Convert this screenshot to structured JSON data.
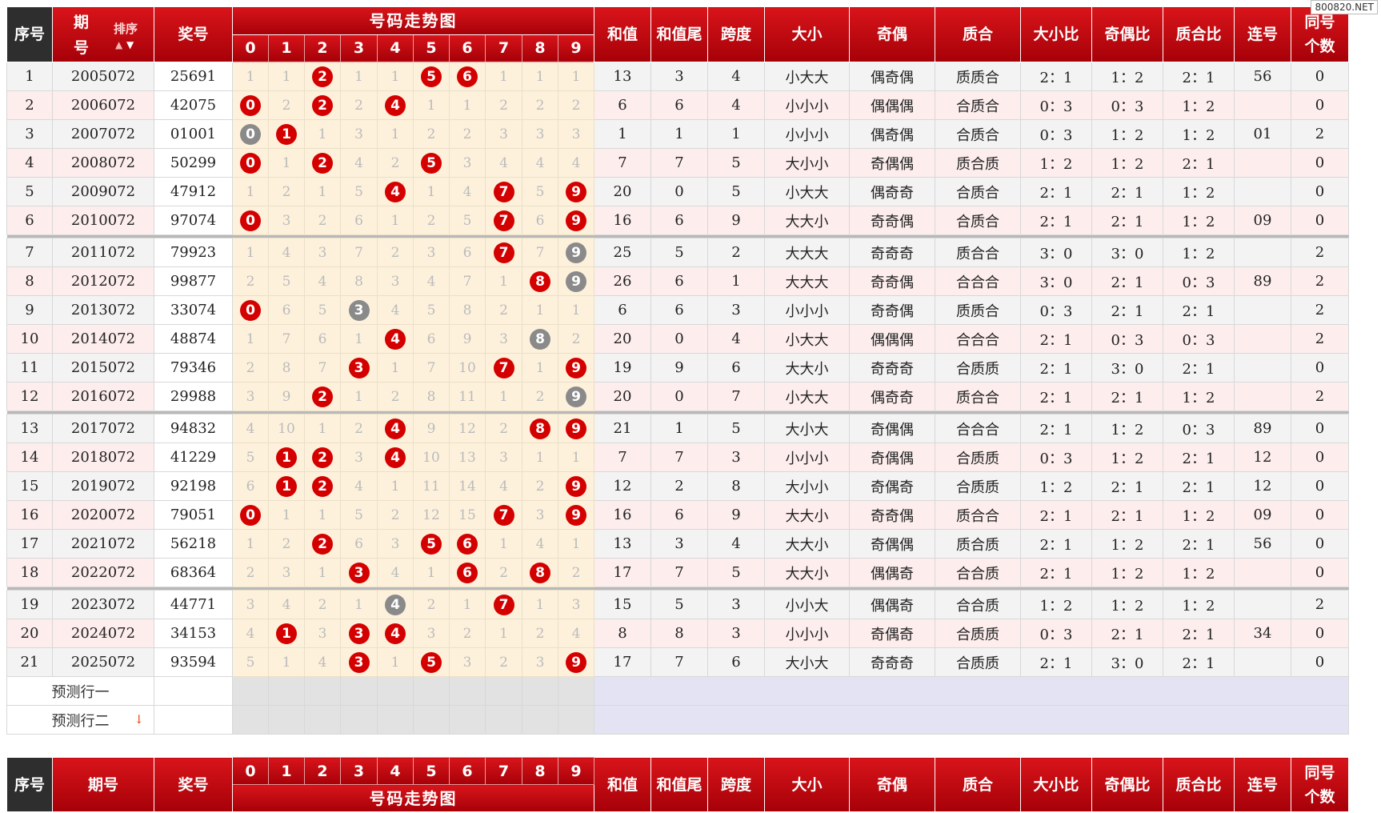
{
  "watermark": "800820.NET",
  "header": {
    "seq": "序号",
    "period_top": "期",
    "period_bottom": "号",
    "sort_label": "排序",
    "prize": "奖号",
    "trend_title": "号码走势图",
    "digits": [
      "0",
      "1",
      "2",
      "3",
      "4",
      "5",
      "6",
      "7",
      "8",
      "9"
    ],
    "sum": "和值",
    "sum_tail": "和值尾",
    "span": "跨度",
    "size": "大小",
    "parity": "奇偶",
    "prime": "质合",
    "size_ratio": "大小比",
    "parity_ratio": "奇偶比",
    "prime_ratio": "质合比",
    "consecutive": "连号",
    "same_top": "同号",
    "same_bottom": "个数"
  },
  "footer": {
    "seq": "序号",
    "period": "期号",
    "prize": "奖号",
    "trend_title": "号码走势图",
    "same_top": "同号",
    "same_bottom": "个数"
  },
  "predict": [
    "预测行一",
    "预测行二"
  ],
  "rows": [
    {
      "seq": "1",
      "period": "2005072",
      "prize": "25691",
      "trend": [
        "1",
        "1",
        "2",
        "1",
        "1",
        "5",
        "6",
        "1",
        "1",
        "1"
      ],
      "hit": [
        "",
        "",
        "r",
        "",
        "",
        "r",
        "r",
        "",
        "",
        ""
      ],
      "sum": "13",
      "tail": "3",
      "span": "4",
      "size": "小大大",
      "parity": "偶奇偶",
      "prime": "质质合",
      "sr": "2：1",
      "pr": "1：2",
      "qr": "2：1",
      "cons": "56",
      "same": "0"
    },
    {
      "seq": "2",
      "period": "2006072",
      "prize": "42075",
      "trend": [
        "0",
        "2",
        "2",
        "2",
        "4",
        "1",
        "1",
        "2",
        "2",
        "2"
      ],
      "hit": [
        "r",
        "",
        "r",
        "",
        "r",
        "",
        "",
        "",
        "",
        ""
      ],
      "sum": "6",
      "tail": "6",
      "span": "4",
      "size": "小小小",
      "parity": "偶偶偶",
      "prime": "合质合",
      "sr": "0：3",
      "pr": "0：3",
      "qr": "1：2",
      "cons": "",
      "same": "0"
    },
    {
      "seq": "3",
      "period": "2007072",
      "prize": "01001",
      "trend": [
        "0",
        "1",
        "1",
        "3",
        "1",
        "2",
        "2",
        "3",
        "3",
        "3"
      ],
      "hit": [
        "g",
        "r",
        "",
        "",
        "",
        "",
        "",
        "",
        "",
        ""
      ],
      "sum": "1",
      "tail": "1",
      "span": "1",
      "size": "小小小",
      "parity": "偶奇偶",
      "prime": "合质合",
      "sr": "0：3",
      "pr": "1：2",
      "qr": "1：2",
      "cons": "01",
      "same": "2"
    },
    {
      "seq": "4",
      "period": "2008072",
      "prize": "50299",
      "trend": [
        "0",
        "1",
        "2",
        "4",
        "2",
        "5",
        "3",
        "4",
        "4",
        "4"
      ],
      "hit": [
        "r",
        "",
        "r",
        "",
        "",
        "r",
        "",
        "",
        "",
        ""
      ],
      "sum": "7",
      "tail": "7",
      "span": "5",
      "size": "大小小",
      "parity": "奇偶偶",
      "prime": "质合质",
      "sr": "1：2",
      "pr": "1：2",
      "qr": "2：1",
      "cons": "",
      "same": "0"
    },
    {
      "seq": "5",
      "period": "2009072",
      "prize": "47912",
      "trend": [
        "1",
        "2",
        "1",
        "5",
        "4",
        "1",
        "4",
        "7",
        "5",
        "9"
      ],
      "hit": [
        "",
        "",
        "",
        "",
        "r",
        "",
        "",
        "r",
        "",
        "r"
      ],
      "sum": "20",
      "tail": "0",
      "span": "5",
      "size": "小大大",
      "parity": "偶奇奇",
      "prime": "合质合",
      "sr": "2：1",
      "pr": "2：1",
      "qr": "1：2",
      "cons": "",
      "same": "0"
    },
    {
      "seq": "6",
      "period": "2010072",
      "prize": "97074",
      "trend": [
        "0",
        "3",
        "2",
        "6",
        "1",
        "2",
        "5",
        "7",
        "6",
        "9"
      ],
      "hit": [
        "r",
        "",
        "",
        "",
        "",
        "",
        "",
        "r",
        "",
        "r"
      ],
      "sum": "16",
      "tail": "6",
      "span": "9",
      "size": "大大小",
      "parity": "奇奇偶",
      "prime": "合质合",
      "sr": "2：1",
      "pr": "2：1",
      "qr": "1：2",
      "cons": "09",
      "same": "0"
    },
    {
      "seq": "7",
      "period": "2011072",
      "prize": "79923",
      "trend": [
        "1",
        "4",
        "3",
        "7",
        "2",
        "3",
        "6",
        "7",
        "7",
        "9"
      ],
      "hit": [
        "",
        "",
        "",
        "",
        "",
        "",
        "",
        "r",
        "",
        "g"
      ],
      "sum": "25",
      "tail": "5",
      "span": "2",
      "size": "大大大",
      "parity": "奇奇奇",
      "prime": "质合合",
      "sr": "3：0",
      "pr": "3：0",
      "qr": "1：2",
      "cons": "",
      "same": "2"
    },
    {
      "seq": "8",
      "period": "2012072",
      "prize": "99877",
      "trend": [
        "2",
        "5",
        "4",
        "8",
        "3",
        "4",
        "7",
        "1",
        "8",
        "9"
      ],
      "hit": [
        "",
        "",
        "",
        "",
        "",
        "",
        "",
        "",
        "r",
        "g"
      ],
      "sum": "26",
      "tail": "6",
      "span": "1",
      "size": "大大大",
      "parity": "奇奇偶",
      "prime": "合合合",
      "sr": "3：0",
      "pr": "2：1",
      "qr": "0：3",
      "cons": "89",
      "same": "2"
    },
    {
      "seq": "9",
      "period": "2013072",
      "prize": "33074",
      "trend": [
        "0",
        "6",
        "5",
        "3",
        "4",
        "5",
        "8",
        "2",
        "1",
        "1"
      ],
      "hit": [
        "r",
        "",
        "",
        "g",
        "",
        "",
        "",
        "",
        "",
        ""
      ],
      "sum": "6",
      "tail": "6",
      "span": "3",
      "size": "小小小",
      "parity": "奇奇偶",
      "prime": "质质合",
      "sr": "0：3",
      "pr": "2：1",
      "qr": "2：1",
      "cons": "",
      "same": "2"
    },
    {
      "seq": "10",
      "period": "2014072",
      "prize": "48874",
      "trend": [
        "1",
        "7",
        "6",
        "1",
        "4",
        "6",
        "9",
        "3",
        "8",
        "2"
      ],
      "hit": [
        "",
        "",
        "",
        "",
        "r",
        "",
        "",
        "",
        "g",
        ""
      ],
      "sum": "20",
      "tail": "0",
      "span": "4",
      "size": "小大大",
      "parity": "偶偶偶",
      "prime": "合合合",
      "sr": "2：1",
      "pr": "0：3",
      "qr": "0：3",
      "cons": "",
      "same": "2"
    },
    {
      "seq": "11",
      "period": "2015072",
      "prize": "79346",
      "trend": [
        "2",
        "8",
        "7",
        "3",
        "1",
        "7",
        "10",
        "7",
        "1",
        "9"
      ],
      "hit": [
        "",
        "",
        "",
        "r",
        "",
        "",
        "",
        "r",
        "",
        "r"
      ],
      "sum": "19",
      "tail": "9",
      "span": "6",
      "size": "大大小",
      "parity": "奇奇奇",
      "prime": "合质质",
      "sr": "2：1",
      "pr": "3：0",
      "qr": "2：1",
      "cons": "",
      "same": "0"
    },
    {
      "seq": "12",
      "period": "2016072",
      "prize": "29988",
      "trend": [
        "3",
        "9",
        "2",
        "1",
        "2",
        "8",
        "11",
        "1",
        "2",
        "9"
      ],
      "hit": [
        "",
        "",
        "r",
        "",
        "",
        "",
        "",
        "",
        "",
        "g"
      ],
      "sum": "20",
      "tail": "0",
      "span": "7",
      "size": "小大大",
      "parity": "偶奇奇",
      "prime": "质合合",
      "sr": "2：1",
      "pr": "2：1",
      "qr": "1：2",
      "cons": "",
      "same": "2"
    },
    {
      "seq": "13",
      "period": "2017072",
      "prize": "94832",
      "trend": [
        "4",
        "10",
        "1",
        "2",
        "4",
        "9",
        "12",
        "2",
        "8",
        "9"
      ],
      "hit": [
        "",
        "",
        "",
        "",
        "r",
        "",
        "",
        "",
        "r",
        "r"
      ],
      "sum": "21",
      "tail": "1",
      "span": "5",
      "size": "大小大",
      "parity": "奇偶偶",
      "prime": "合合合",
      "sr": "2：1",
      "pr": "1：2",
      "qr": "0：3",
      "cons": "89",
      "same": "0"
    },
    {
      "seq": "14",
      "period": "2018072",
      "prize": "41229",
      "trend": [
        "5",
        "1",
        "2",
        "3",
        "4",
        "10",
        "13",
        "3",
        "1",
        "1"
      ],
      "hit": [
        "",
        "r",
        "r",
        "",
        "r",
        "",
        "",
        "",
        "",
        ""
      ],
      "sum": "7",
      "tail": "7",
      "span": "3",
      "size": "小小小",
      "parity": "奇偶偶",
      "prime": "合质质",
      "sr": "0：3",
      "pr": "1：2",
      "qr": "2：1",
      "cons": "12",
      "same": "0"
    },
    {
      "seq": "15",
      "period": "2019072",
      "prize": "92198",
      "trend": [
        "6",
        "1",
        "2",
        "4",
        "1",
        "11",
        "14",
        "4",
        "2",
        "9"
      ],
      "hit": [
        "",
        "r",
        "r",
        "",
        "",
        "",
        "",
        "",
        "",
        "r"
      ],
      "sum": "12",
      "tail": "2",
      "span": "8",
      "size": "大小小",
      "parity": "奇偶奇",
      "prime": "合质质",
      "sr": "1：2",
      "pr": "2：1",
      "qr": "2：1",
      "cons": "12",
      "same": "0"
    },
    {
      "seq": "16",
      "period": "2020072",
      "prize": "79051",
      "trend": [
        "0",
        "1",
        "1",
        "5",
        "2",
        "12",
        "15",
        "7",
        "3",
        "9"
      ],
      "hit": [
        "r",
        "",
        "",
        "",
        "",
        "",
        "",
        "r",
        "",
        "r"
      ],
      "sum": "16",
      "tail": "6",
      "span": "9",
      "size": "大大小",
      "parity": "奇奇偶",
      "prime": "质合合",
      "sr": "2：1",
      "pr": "2：1",
      "qr": "1：2",
      "cons": "09",
      "same": "0"
    },
    {
      "seq": "17",
      "period": "2021072",
      "prize": "56218",
      "trend": [
        "1",
        "2",
        "2",
        "6",
        "3",
        "5",
        "6",
        "1",
        "4",
        "1"
      ],
      "hit": [
        "",
        "",
        "r",
        "",
        "",
        "r",
        "r",
        "",
        "",
        ""
      ],
      "sum": "13",
      "tail": "3",
      "span": "4",
      "size": "大大小",
      "parity": "奇偶偶",
      "prime": "质合质",
      "sr": "2：1",
      "pr": "1：2",
      "qr": "2：1",
      "cons": "56",
      "same": "0"
    },
    {
      "seq": "18",
      "period": "2022072",
      "prize": "68364",
      "trend": [
        "2",
        "3",
        "1",
        "3",
        "4",
        "1",
        "6",
        "2",
        "8",
        "2"
      ],
      "hit": [
        "",
        "",
        "",
        "r",
        "",
        "",
        "r",
        "",
        "r",
        ""
      ],
      "sum": "17",
      "tail": "7",
      "span": "5",
      "size": "大大小",
      "parity": "偶偶奇",
      "prime": "合合质",
      "sr": "2：1",
      "pr": "1：2",
      "qr": "1：2",
      "cons": "",
      "same": "0"
    },
    {
      "seq": "19",
      "period": "2023072",
      "prize": "44771",
      "trend": [
        "3",
        "4",
        "2",
        "1",
        "4",
        "2",
        "1",
        "7",
        "1",
        "3"
      ],
      "hit": [
        "",
        "",
        "",
        "",
        "g",
        "",
        "",
        "r",
        "",
        ""
      ],
      "sum": "15",
      "tail": "5",
      "span": "3",
      "size": "小小大",
      "parity": "偶偶奇",
      "prime": "合合质",
      "sr": "1：2",
      "pr": "1：2",
      "qr": "1：2",
      "cons": "",
      "same": "2"
    },
    {
      "seq": "20",
      "period": "2024072",
      "prize": "34153",
      "trend": [
        "4",
        "1",
        "3",
        "3",
        "4",
        "3",
        "2",
        "1",
        "2",
        "4"
      ],
      "hit": [
        "",
        "r",
        "",
        "r",
        "r",
        "",
        "",
        "",
        "",
        ""
      ],
      "sum": "8",
      "tail": "8",
      "span": "3",
      "size": "小小小",
      "parity": "奇偶奇",
      "prime": "合质质",
      "sr": "0：3",
      "pr": "2：1",
      "qr": "2：1",
      "cons": "34",
      "same": "0"
    },
    {
      "seq": "21",
      "period": "2025072",
      "prize": "93594",
      "trend": [
        "5",
        "1",
        "4",
        "3",
        "1",
        "5",
        "3",
        "2",
        "3",
        "9"
      ],
      "hit": [
        "",
        "",
        "",
        "r",
        "",
        "r",
        "",
        "",
        "",
        "r"
      ],
      "sum": "17",
      "tail": "7",
      "span": "6",
      "size": "大小大",
      "parity": "奇奇奇",
      "prime": "合质质",
      "sr": "2：1",
      "pr": "3：0",
      "qr": "2：1",
      "cons": "",
      "same": "0"
    }
  ],
  "colors": {
    "header_red": "#c40a10",
    "seq_dark": "#2e2e2e",
    "hit_ball": "#d40000",
    "repeat_ball": "#8a8a8a",
    "trend_bg": "#fdf1dc",
    "predict_bg": "#e3e3f3"
  }
}
